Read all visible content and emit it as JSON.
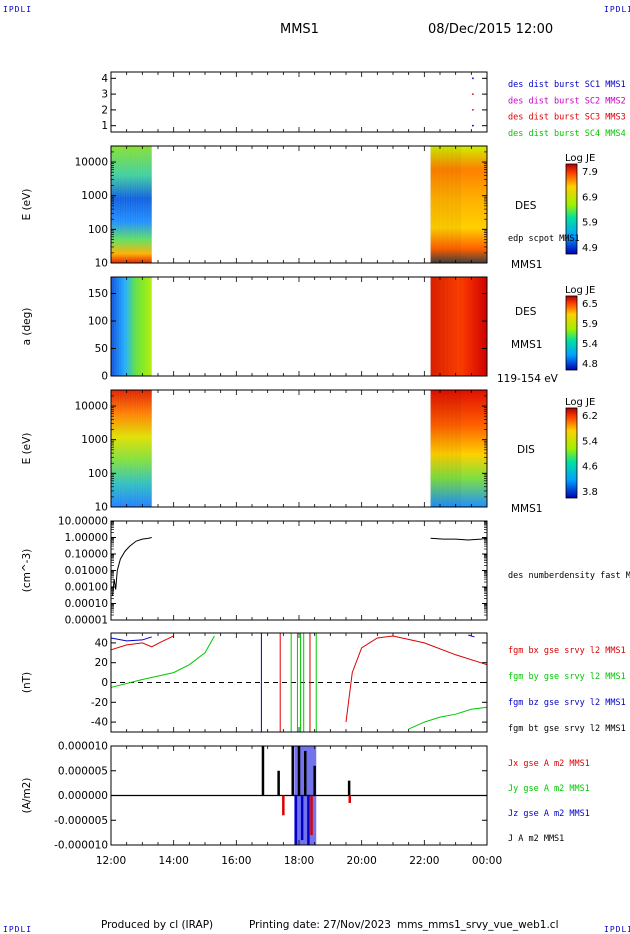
{
  "header": {
    "corner_label": "IPDLI",
    "title": "MMS1",
    "datetime": "08/Dec/2015 12:00"
  },
  "footer": {
    "produced_by": "Produced by cl (IRAP)",
    "printing_date": "Printing date: 27/Nov/2023",
    "filename": "mms_mms1_srvy_vue_web1.cl"
  },
  "colors": {
    "sc1": "#0000c8",
    "sc2": "#c800c8",
    "sc3": "#dc0000",
    "sc4": "#00c800",
    "black": "#000000"
  },
  "time_axis": {
    "ticks": [
      "12:00",
      "14:00",
      "16:00",
      "18:00",
      "20:00",
      "22:00",
      "00:00"
    ],
    "range_hours": [
      12,
      24
    ]
  },
  "chart_data": [
    {
      "id": "burst",
      "type": "scatter",
      "yticks": [
        "1",
        "2",
        "3",
        "4"
      ],
      "ylim": [
        0.6,
        4.4
      ],
      "legend": [
        "des dist burst SC1 MMS1",
        "des dist burst SC2 MMS2",
        "des dist burst SC3 MMS3",
        "des dist burst SC4 MMS4"
      ],
      "points": [
        {
          "t": 23.55,
          "y": 4,
          "sc": "sc1"
        },
        {
          "t": 23.55,
          "y": 3,
          "sc": "sc3"
        },
        {
          "t": 23.55,
          "y": 2,
          "sc": "sc3"
        },
        {
          "t": 23.55,
          "y": 1,
          "sc": "sc1"
        }
      ]
    },
    {
      "id": "des_energy",
      "type": "heatmap",
      "ylabel": "E (eV)",
      "yticks": [
        "10",
        "100",
        "1000",
        "10000"
      ],
      "ylog": true,
      "ylim": [
        10,
        30000
      ],
      "labels": [
        "DES",
        "edp scpot MMS1",
        "MMS1"
      ],
      "colorbar": {
        "title": "Log JE",
        "ticks": [
          "7.9",
          "6.9",
          "5.9",
          "4.9"
        ]
      },
      "data_intervals_hours": [
        [
          12.0,
          13.3
        ],
        [
          22.2,
          24.0
        ]
      ]
    },
    {
      "id": "des_pitch",
      "type": "heatmap",
      "ylabel": "a (deg)",
      "yticks": [
        "0",
        "50",
        "100",
        "150"
      ],
      "ylim": [
        0,
        180
      ],
      "labels": [
        "DES",
        "MMS1",
        "119-154 eV"
      ],
      "colorbar": {
        "title": "Log JE",
        "ticks": [
          "6.5",
          "5.9",
          "5.4",
          "4.8"
        ]
      },
      "data_intervals_hours": [
        [
          12.0,
          13.3
        ],
        [
          22.2,
          24.0
        ]
      ]
    },
    {
      "id": "dis_energy",
      "type": "heatmap",
      "ylabel": "E (eV)",
      "yticks": [
        "10",
        "100",
        "1000",
        "10000"
      ],
      "ylog": true,
      "ylim": [
        10,
        30000
      ],
      "labels": [
        "DIS",
        "MMS1"
      ],
      "colorbar": {
        "title": "Log JE",
        "ticks": [
          "6.2",
          "5.4",
          "4.6",
          "3.8"
        ]
      },
      "data_intervals_hours": [
        [
          12.0,
          13.3
        ],
        [
          22.2,
          24.0
        ]
      ]
    },
    {
      "id": "density",
      "type": "line",
      "ylabel": "(cm^-3)",
      "yticks": [
        "10.00000",
        "1.00000",
        "0.10000",
        "0.01000",
        "0.00100",
        "0.00010",
        "0.00001"
      ],
      "ylog": true,
      "ylim": [
        1e-05,
        10
      ],
      "legend": [
        "des numberdensity fast M"
      ],
      "series": [
        {
          "name": "des numberdensity fast M",
          "x": [
            12.05,
            12.1,
            12.15,
            12.2,
            12.3,
            12.45,
            12.6,
            12.8,
            13.0,
            13.2,
            13.3
          ],
          "y": [
            0.0003,
            0.003,
            0.0007,
            0.01,
            0.05,
            0.15,
            0.3,
            0.6,
            0.8,
            0.9,
            1.0
          ]
        },
        {
          "name": "des numberdensity fast M",
          "x": [
            22.2,
            22.6,
            23.0,
            23.4,
            23.8,
            24.0
          ],
          "y": [
            0.9,
            0.8,
            0.8,
            0.7,
            0.8,
            0.9
          ]
        }
      ]
    },
    {
      "id": "bfield",
      "type": "line",
      "ylabel": "(nT)",
      "yticks": [
        "-40",
        "-20",
        "0",
        "20",
        "40"
      ],
      "ylim": [
        -50,
        50
      ],
      "legend": [
        "fgm bx gse srvy l2 MMS1",
        "fgm by gse srvy l2 MMS1",
        "fgm bz gse srvy l2 MMS1",
        "fgm bt gse srvy l2 MMS1"
      ],
      "series": [
        {
          "name": "fgm bx gse srvy l2 MMS1",
          "color": "sc3",
          "x": [
            12.0,
            12.5,
            13.0,
            13.3,
            13.6,
            14.0,
            19.5,
            19.7,
            20.0,
            20.5,
            21.0,
            22.0,
            23.0,
            24.0
          ],
          "y": [
            33,
            38,
            40,
            36,
            41,
            47,
            -40,
            10,
            35,
            45,
            47,
            40,
            28,
            18
          ]
        },
        {
          "name": "fgm by gse srvy l2 MMS1",
          "color": "sc4",
          "x": [
            12.0,
            13.0,
            14.0,
            14.5,
            15.0,
            15.3,
            21.5,
            22.0,
            22.5,
            23.0,
            23.5,
            24.0
          ],
          "y": [
            -5,
            3,
            10,
            18,
            30,
            47,
            -47,
            -40,
            -35,
            -32,
            -27,
            -25
          ]
        },
        {
          "name": "fgm bz gse srvy l2 MMS1",
          "color": "sc1",
          "x": [
            12.0,
            12.5,
            13.0,
            13.3,
            23.4,
            23.6
          ],
          "y": [
            45,
            42,
            43,
            46,
            48,
            46
          ]
        }
      ]
    },
    {
      "id": "current",
      "type": "line",
      "ylabel": "(A/m2)",
      "yticks": [
        "-0.000010",
        "-0.000005",
        "0.000000",
        "0.000005",
        "0.000010"
      ],
      "ylim": [
        -1e-05,
        1e-05
      ],
      "legend": [
        "Jx gse A m2 MMS1",
        "Jy gse A m2 MMS1",
        "Jz gse A m2 MMS1",
        "J A m2 MMS1"
      ]
    }
  ]
}
